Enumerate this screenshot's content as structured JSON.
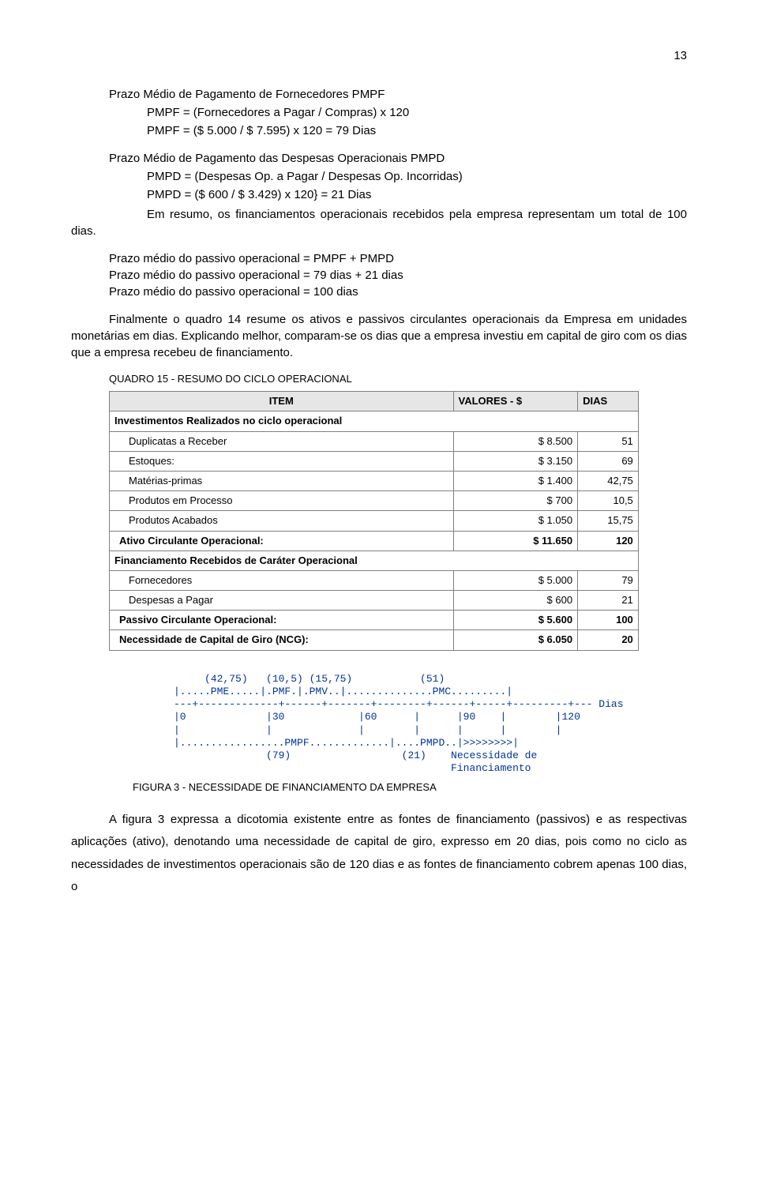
{
  "page_number": "13",
  "section1": {
    "title": "Prazo Médio de Pagamento de Fornecedores PMPF",
    "line1": "PMPF = (Fornecedores a Pagar / Compras) x 120",
    "line2": "PMPF = ($ 5.000 / $ 7.595) x 120 = 79 Dias"
  },
  "section2": {
    "title": "Prazo Médio de Pagamento das Despesas Operacionais PMPD",
    "line1": "PMPD = (Despesas Op. a Pagar / Despesas Op. Incorridas)",
    "line2": "PMPD = ($ 600 / $ 3.429) x 120} = 21 Dias"
  },
  "para1a": "Em resumo, os financiamentos operacionais recebidos pela empresa representam um total de 100 dias.",
  "calc1": "Prazo médio do passivo operacional = PMPF + PMPD",
  "calc2": "Prazo médio do passivo operacional = 79 dias + 21 dias",
  "calc3": "Prazo médio do passivo operacional = 100 dias",
  "para2": "Finalmente o quadro 14 resume os ativos e passivos circulantes operacionais da Empresa em unidades monetárias em dias. Explicando melhor, comparam-se os dias que a empresa investiu em capital de giro com os dias que a empresa recebeu de financiamento.",
  "table": {
    "caption": "QUADRO 15 - RESUMO DO CICLO OPERACIONAL",
    "head_item": "ITEM",
    "head_val": "VALORES - $",
    "head_dias": "DIAS",
    "rows": [
      {
        "type": "section",
        "label": "Investimentos Realizados no ciclo operacional"
      },
      {
        "type": "row1",
        "label": "Duplicatas a Receber",
        "val": "$ 8.500",
        "dias": "51"
      },
      {
        "type": "row1",
        "label": "Estoques:",
        "val": "$ 3.150",
        "dias": "69"
      },
      {
        "type": "row1",
        "label": "Matérias-primas",
        "val": "$ 1.400",
        "dias": "42,75"
      },
      {
        "type": "row1",
        "label": "Produtos em Processo",
        "val": "$ 700",
        "dias": "10,5"
      },
      {
        "type": "row1",
        "label": "Produtos Acabados",
        "val": "$ 1.050",
        "dias": "15,75"
      },
      {
        "type": "boldrow",
        "label": "Ativo Circulante Operacional:",
        "val": "$ 11.650",
        "dias": "120"
      },
      {
        "type": "section",
        "label": "Financiamento Recebidos de Caráter Operacional"
      },
      {
        "type": "row1",
        "label": "Fornecedores",
        "val": "$ 5.000",
        "dias": "79"
      },
      {
        "type": "row1",
        "label": "Despesas a Pagar",
        "val": "$ 600",
        "dias": "21"
      },
      {
        "type": "boldrow",
        "label": "Passivo Circulante Operacional:",
        "val": "$ 5.600",
        "dias": "100"
      },
      {
        "type": "boldrow",
        "label": "Necessidade de Capital de  Giro (NCG):",
        "val": "$ 6.050",
        "dias": "20"
      }
    ]
  },
  "ascii": "     (42,75)   (10,5) (15,75)           (51)\n|.....PME.....|.PMF.|.PMV..|..............PMC.........|\n---+-------------+------+-------+--------+------+-----+---------+--- Dias\n|0             |30            |60      |      |90    |        |120\n|              |              |        |      |      |        |\n|.................PMPF.............|....PMPD..|>>>>>>>>|\n               (79)                  (21)    Necessidade de\n                                             Financiamento",
  "figcaption": "FIGURA 3 - NECESSIDADE DE FINANCIAMENTO DA EMPRESA",
  "para3": "A figura 3 expressa a dicotomia existente entre as fontes de financiamento (passivos) e as respectivas aplicações (ativo), denotando uma necessidade de capital de giro, expresso em 20 dias, pois como no ciclo as necessidades de investimentos operacionais são de 120 dias e as fontes de financiamento cobrem apenas 100 dias, o"
}
